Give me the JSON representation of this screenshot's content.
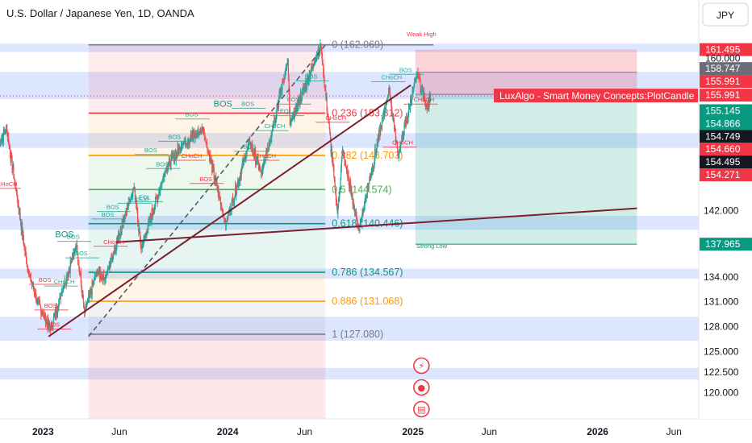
{
  "header": {
    "title": "U.S. Dollar / Japanese Yen, 1D, OANDA"
  },
  "currency": "JPY",
  "colors": {
    "up": "#26a69a",
    "down": "#ef5350",
    "red_tag": "#f23645",
    "grey_tag": "#6a6d78",
    "dark_tag": "#131722",
    "green_tag": "#089981"
  },
  "chart_data": {
    "type": "candlestick",
    "symbol": "USDJPY",
    "timeframe": "1D",
    "x_range": [
      "2022-10-08",
      "2026-07-20"
    ],
    "y_range": [
      118.5,
      163.5
    ],
    "y_axis_labels": [
      "142.000",
      "134.000",
      "131.000",
      "128.000",
      "125.000",
      "122.500",
      "120.000"
    ],
    "x_axis_labels": [
      "2023",
      "Jun",
      "2024",
      "Jun",
      "2025",
      "Jun",
      "2026",
      "Jun"
    ],
    "fibonacci": {
      "start_date": "2023-04-01",
      "end_date": "2024-07-12",
      "levels": [
        {
          "ratio": "0",
          "price": 162.069,
          "label": "0 (162.069)",
          "color": "#787b86"
        },
        {
          "ratio": "0.236",
          "price": 153.812,
          "label": "0.236 (153.812)",
          "color": "#f23645"
        },
        {
          "ratio": "0.382",
          "price": 148.703,
          "label": "0.382 (148.703)",
          "color": "#ff9800"
        },
        {
          "ratio": "0.5",
          "price": 144.574,
          "label": "0.5 (144.574)",
          "color": "#4caf50"
        },
        {
          "ratio": "0.618",
          "price": 140.446,
          "label": "0.618 (140.446)",
          "color": "#089981"
        },
        {
          "ratio": "0.786",
          "price": 134.567,
          "label": "0.786 (134.567)",
          "color": "#089981"
        },
        {
          "ratio": "0.886",
          "price": 131.068,
          "label": "0.886 (131.068)",
          "color": "#ff9800"
        },
        {
          "ratio": "1",
          "price": 127.08,
          "label": "1 (127.080)",
          "color": "#787b86"
        }
      ]
    },
    "position": {
      "start_date": "2025-01-06",
      "end_date": "2026-03-20",
      "entry": 155.991,
      "target": 137.965,
      "stop": 161.495
    },
    "zones": [
      {
        "low": 161.2,
        "high": 162.2
      },
      {
        "low": 155.5,
        "high": 158.8
      },
      {
        "low": 149.6,
        "high": 151.4
      },
      {
        "low": 139.7,
        "high": 141.4
      },
      {
        "low": 133.8,
        "high": 135.0
      },
      {
        "low": 127.6,
        "high": 129.2
      },
      {
        "low": 126.3,
        "high": 127.6
      },
      {
        "low": 121.6,
        "high": 123.0
      }
    ],
    "trendlines": [
      {
        "from": [
          "2023-01-12",
          126.8
        ],
        "to": [
          "2024-12-28",
          157.2
        ],
        "style": "solid"
      },
      {
        "from": [
          "2023-05-25",
          138.2
        ],
        "to": [
          "2026-03-20",
          142.3
        ],
        "style": "solid"
      },
      {
        "from": [
          "2023-04-01",
          126.8
        ],
        "to": [
          "2024-07-12",
          162.069
        ],
        "style": "dashed"
      }
    ],
    "pivots": [
      [
        "2022-10-08",
        150.4
      ],
      [
        "2022-10-21",
        151.9
      ],
      [
        "2022-11-10",
        144.0
      ],
      [
        "2022-12-02",
        134.8
      ],
      [
        "2022-12-20",
        131.2
      ],
      [
        "2023-01-02",
        129.5
      ],
      [
        "2023-01-16",
        127.6
      ],
      [
        "2023-02-06",
        131.9
      ],
      [
        "2023-03-08",
        137.9
      ],
      [
        "2023-03-24",
        129.7
      ],
      [
        "2023-04-18",
        134.7
      ],
      [
        "2023-05-03",
        133.7
      ],
      [
        "2023-06-30",
        144.9
      ],
      [
        "2023-07-14",
        137.4
      ],
      [
        "2023-08-31",
        146.9
      ],
      [
        "2023-10-03",
        150.0
      ],
      [
        "2023-11-13",
        151.9
      ],
      [
        "2023-12-28",
        140.3
      ],
      [
        "2024-02-13",
        150.4
      ],
      [
        "2024-03-08",
        146.5
      ],
      [
        "2024-04-29",
        160.1
      ],
      [
        "2024-05-03",
        152.4
      ],
      [
        "2024-06-26",
        160.8
      ],
      [
        "2024-07-03",
        161.95
      ],
      [
        "2024-08-05",
        141.7
      ],
      [
        "2024-08-15",
        149.3
      ],
      [
        "2024-09-16",
        139.6
      ],
      [
        "2024-11-15",
        156.7
      ],
      [
        "2024-12-03",
        148.6
      ],
      [
        "2025-01-10",
        158.8
      ],
      [
        "2025-01-28",
        154.5
      ],
      [
        "2025-02-05",
        155.991
      ]
    ],
    "annotations": [
      {
        "text": "Weak High",
        "date": "2024-12-20",
        "price": 163.1,
        "color": "#f23645"
      },
      {
        "text": "Strong Low",
        "date": "2025-01-08",
        "price": 137.5,
        "color": "#089981"
      },
      {
        "text": "LuxAlgo - Smart Money Concepts:PlotCandle",
        "price": 155.991,
        "color": "#f23645"
      }
    ],
    "structure_labels": [
      {
        "text": "CHoCH",
        "date": "2022-10-14",
        "price": 145.0,
        "color": "#f23645"
      },
      {
        "text": "BOS",
        "date": "2023-01-05",
        "price": 133.4,
        "color": "#f23645"
      },
      {
        "text": "BOS",
        "date": "2023-01-16",
        "price": 130.3,
        "color": "#f23645"
      },
      {
        "text": "CHoCH",
        "date": "2023-02-04",
        "price": 133.2,
        "color": "#26a69a"
      },
      {
        "text": "BOS",
        "date": "2023-01-22",
        "price": 128.0,
        "color": "#f23645"
      },
      {
        "text": "BOS",
        "date": "2023-03-02",
        "price": 138.6,
        "color": "#26a69a"
      },
      {
        "text": "BOS",
        "date": "2023-03-18",
        "price": 136.6,
        "color": "#26a69a"
      },
      {
        "text": "BOS",
        "date": "2023-05-09",
        "price": 141.3,
        "color": "#26a69a"
      },
      {
        "text": "CHoCH",
        "date": "2023-05-13",
        "price": 138.0,
        "color": "#f23645"
      },
      {
        "text": "BOS",
        "date": "2023-05-19",
        "price": 142.2,
        "color": "#26a69a"
      },
      {
        "text": "CHoCH",
        "date": "2023-06-30",
        "price": 143.2,
        "color": "#26a69a"
      },
      {
        "text": "EQL",
        "date": "2023-07-22",
        "price": 143.4,
        "color": "#26a69a"
      },
      {
        "text": "BOS",
        "date": "2023-08-25",
        "price": 147.4,
        "color": "#26a69a"
      },
      {
        "text": "BOS",
        "date": "2023-08-02",
        "price": 149.1,
        "color": "#26a69a"
      },
      {
        "text": "BOS",
        "date": "2023-09-18",
        "price": 150.7,
        "color": "#26a69a"
      },
      {
        "text": "BOS",
        "date": "2023-10-22",
        "price": 153.4,
        "color": "#26a69a"
      },
      {
        "text": "CHoCH",
        "date": "2023-10-14",
        "price": 148.4,
        "color": "#f23645"
      },
      {
        "text": "BOS",
        "date": "2023-11-19",
        "price": 145.6,
        "color": "#f23645"
      },
      {
        "text": "BOS",
        "date": "2024-02-10",
        "price": 154.7,
        "color": "#26a69a"
      },
      {
        "text": "BOS",
        "date": "2024-02-14",
        "price": 149.5,
        "color": "#26a69a"
      },
      {
        "text": "CHoCH",
        "date": "2024-03-08",
        "price": 148.4,
        "color": "#f23645"
      },
      {
        "text": "CHoCH",
        "date": "2024-03-26",
        "price": 152.0,
        "color": "#26a69a"
      },
      {
        "text": "EQL",
        "date": "2024-04-26",
        "price": 153.8,
        "color": "#26a69a"
      },
      {
        "text": "BOS",
        "date": "2024-05-10",
        "price": 155.2,
        "color": "#26a69a"
      },
      {
        "text": "BOS",
        "date": "2024-06-14",
        "price": 158.0,
        "color": "#26a69a"
      },
      {
        "text": "CHoCH",
        "date": "2024-07-25",
        "price": 153.0,
        "color": "#f23645"
      },
      {
        "text": "CHoCH",
        "date": "2024-11-12",
        "price": 157.9,
        "color": "#26a69a"
      },
      {
        "text": "BOS",
        "date": "2024-12-18",
        "price": 158.8,
        "color": "#26a69a"
      },
      {
        "text": "CHoCH",
        "date": "2024-12-04",
        "price": 150.0,
        "color": "#f23645"
      },
      {
        "text": "CHoCH",
        "date": "2025-01-15",
        "price": 155.2,
        "color": "#f23645"
      }
    ],
    "big_labels": [
      {
        "text": "BOS",
        "date": "2023-02-10",
        "price": 138.8,
        "color": "#089981"
      },
      {
        "text": "BOS",
        "date": "2023-12-20",
        "price": 154.6,
        "color": "#089981"
      }
    ],
    "price_tags": [
      {
        "text": "161.495",
        "price": 161.495,
        "color": "#f23645"
      },
      {
        "text": "160.000",
        "price": 160.45,
        "color": "#131722",
        "hollow": true
      },
      {
        "text": "158.747",
        "price": 159.2,
        "color": "#6a6d78"
      },
      {
        "text": "155.991",
        "price": 157.65,
        "color": "#f23645"
      },
      {
        "text": "155.991",
        "price": 155.991,
        "color": "#f23645"
      },
      {
        "text": "155.145",
        "price": 154.1,
        "color": "#089981"
      },
      {
        "text": "154.866",
        "price": 152.55,
        "color": "#089981"
      },
      {
        "text": "154.749",
        "price": 151.0,
        "color": "#131722"
      },
      {
        "text": "154.660",
        "price": 149.45,
        "color": "#f23645"
      },
      {
        "text": "154.495",
        "price": 147.9,
        "color": "#131722"
      },
      {
        "text": "154.271",
        "price": 146.35,
        "color": "#f23645"
      },
      {
        "text": "137.965",
        "price": 137.965,
        "color": "#089981"
      }
    ]
  }
}
